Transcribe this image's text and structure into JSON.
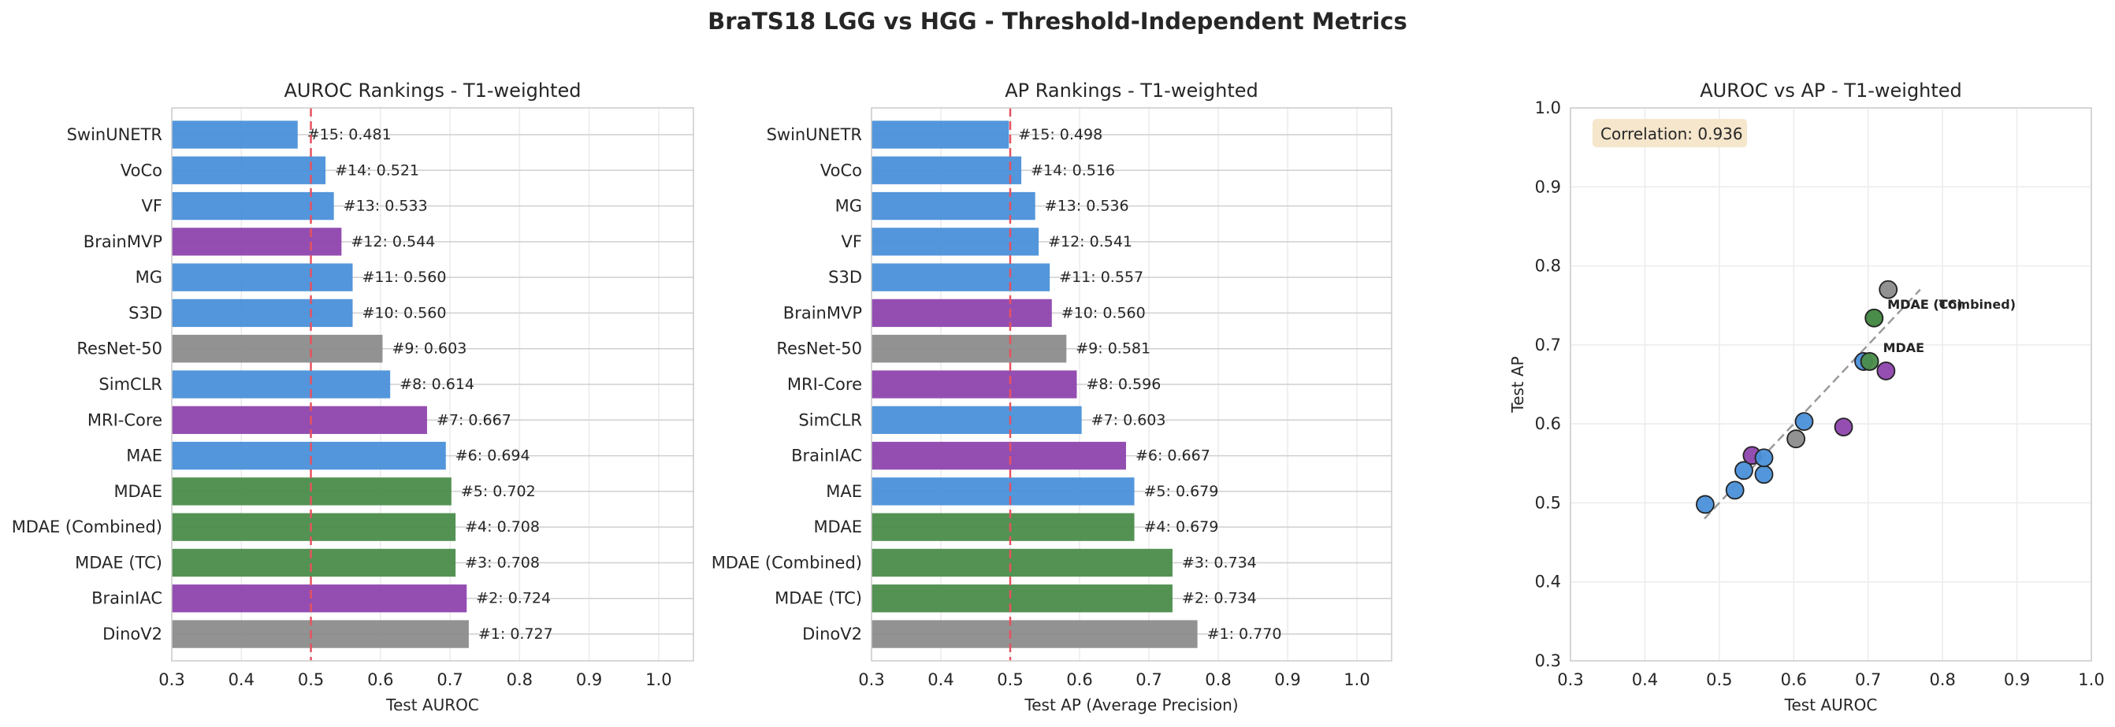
{
  "figure": {
    "suptitle": "BraTS18 LGG vs HGG - Threshold-Independent Metrics"
  },
  "colors": {
    "ssl_blue": "#4a90d9",
    "medical_purple": "#8e44ad",
    "mdae_green": "#4a8c4a",
    "baseline_gray": "#8c8c8c",
    "threshold_red": "#e8525f",
    "correlation_box": "#f5e6cc"
  },
  "chart_data": [
    {
      "type": "bar",
      "orientation": "horizontal",
      "title": "AUROC Rankings - T1-weighted",
      "xlabel": "Test AUROC",
      "xlim": [
        0.3,
        1.05
      ],
      "xticks": [
        0.3,
        0.4,
        0.5,
        0.6,
        0.7,
        0.8,
        0.9,
        1.0
      ],
      "xtick_labels": [
        "0.3",
        "0.4",
        "0.5",
        "0.6",
        "0.7",
        "0.8",
        "0.9",
        "1.0"
      ],
      "reference_line": 0.5,
      "grid": true,
      "categories": [
        "SwinUNETR",
        "VoCo",
        "VF",
        "BrainMVP",
        "MG",
        "S3D",
        "ResNet-50",
        "SimCLR",
        "MRI-Core",
        "MAE",
        "MDAE",
        "MDAE (Combined)",
        "MDAE (TC)",
        "BrainIAC",
        "DinoV2"
      ],
      "values": [
        0.481,
        0.521,
        0.533,
        0.544,
        0.56,
        0.56,
        0.603,
        0.614,
        0.667,
        0.694,
        0.702,
        0.708,
        0.708,
        0.724,
        0.727
      ],
      "labels": [
        "#15: 0.481",
        "#14: 0.521",
        "#13: 0.533",
        "#12: 0.544",
        "#11: 0.560",
        "#10: 0.560",
        "#9: 0.603",
        "#8: 0.614",
        "#7: 0.667",
        "#6: 0.694",
        "#5: 0.702",
        "#4: 0.708",
        "#3: 0.708",
        "#2: 0.724",
        "#1: 0.727"
      ],
      "bar_colors": [
        "ssl_blue",
        "ssl_blue",
        "ssl_blue",
        "medical_purple",
        "ssl_blue",
        "ssl_blue",
        "baseline_gray",
        "ssl_blue",
        "medical_purple",
        "ssl_blue",
        "mdae_green",
        "mdae_green",
        "mdae_green",
        "medical_purple",
        "baseline_gray"
      ]
    },
    {
      "type": "bar",
      "orientation": "horizontal",
      "title": "AP Rankings - T1-weighted",
      "xlabel": "Test AP (Average Precision)",
      "xlim": [
        0.3,
        1.05
      ],
      "xticks": [
        0.3,
        0.4,
        0.5,
        0.6,
        0.7,
        0.8,
        0.9,
        1.0
      ],
      "xtick_labels": [
        "0.3",
        "0.4",
        "0.5",
        "0.6",
        "0.7",
        "0.8",
        "0.9",
        "1.0"
      ],
      "reference_line": 0.5,
      "grid": true,
      "categories": [
        "SwinUNETR",
        "VoCo",
        "MG",
        "VF",
        "S3D",
        "BrainMVP",
        "ResNet-50",
        "MRI-Core",
        "SimCLR",
        "BrainIAC",
        "MAE",
        "MDAE",
        "MDAE (Combined)",
        "MDAE (TC)",
        "DinoV2"
      ],
      "values": [
        0.498,
        0.516,
        0.536,
        0.541,
        0.557,
        0.56,
        0.581,
        0.596,
        0.603,
        0.667,
        0.679,
        0.679,
        0.734,
        0.734,
        0.77
      ],
      "labels": [
        "#15: 0.498",
        "#14: 0.516",
        "#13: 0.536",
        "#12: 0.541",
        "#11: 0.557",
        "#10: 0.560",
        "#9: 0.581",
        "#8: 0.596",
        "#7: 0.603",
        "#6: 0.667",
        "#5: 0.679",
        "#4: 0.679",
        "#3: 0.734",
        "#2: 0.734",
        "#1: 0.770"
      ],
      "bar_colors": [
        "ssl_blue",
        "ssl_blue",
        "ssl_blue",
        "ssl_blue",
        "ssl_blue",
        "medical_purple",
        "baseline_gray",
        "medical_purple",
        "ssl_blue",
        "medical_purple",
        "ssl_blue",
        "mdae_green",
        "mdae_green",
        "mdae_green",
        "baseline_gray"
      ]
    },
    {
      "type": "scatter",
      "title": "AUROC vs AP - T1-weighted",
      "xlabel": "Test AUROC",
      "ylabel": "Test AP",
      "xlim": [
        0.3,
        1.0
      ],
      "ylim": [
        0.3,
        1.0
      ],
      "xticks": [
        0.3,
        0.4,
        0.5,
        0.6,
        0.7,
        0.8,
        0.9,
        1.0
      ],
      "xtick_labels": [
        "0.3",
        "0.4",
        "0.5",
        "0.6",
        "0.7",
        "0.8",
        "0.9",
        "1.0"
      ],
      "yticks": [
        0.3,
        0.4,
        0.5,
        0.6,
        0.7,
        0.8,
        0.9,
        1.0
      ],
      "ytick_labels": [
        "0.3",
        "0.4",
        "0.5",
        "0.6",
        "0.7",
        "0.8",
        "0.9",
        "1.0"
      ],
      "grid": true,
      "annotation": "Correlation: 0.936",
      "diagonal": [
        0.48,
        0.77
      ],
      "points": [
        {
          "x": 0.481,
          "y": 0.498,
          "color": "ssl_blue",
          "label": ""
        },
        {
          "x": 0.521,
          "y": 0.516,
          "color": "ssl_blue",
          "label": ""
        },
        {
          "x": 0.533,
          "y": 0.541,
          "color": "ssl_blue",
          "label": ""
        },
        {
          "x": 0.544,
          "y": 0.56,
          "color": "medical_purple",
          "label": ""
        },
        {
          "x": 0.56,
          "y": 0.536,
          "color": "ssl_blue",
          "label": ""
        },
        {
          "x": 0.56,
          "y": 0.557,
          "color": "ssl_blue",
          "label": ""
        },
        {
          "x": 0.603,
          "y": 0.581,
          "color": "baseline_gray",
          "label": ""
        },
        {
          "x": 0.614,
          "y": 0.603,
          "color": "ssl_blue",
          "label": ""
        },
        {
          "x": 0.667,
          "y": 0.596,
          "color": "medical_purple",
          "label": ""
        },
        {
          "x": 0.694,
          "y": 0.679,
          "color": "ssl_blue",
          "label": ""
        },
        {
          "x": 0.702,
          "y": 0.679,
          "color": "mdae_green",
          "label": "MDAE"
        },
        {
          "x": 0.708,
          "y": 0.734,
          "color": "mdae_green",
          "label": "MDAE (Combined)"
        },
        {
          "x": 0.708,
          "y": 0.734,
          "color": "mdae_green",
          "label": "MDAE (TC)"
        },
        {
          "x": 0.724,
          "y": 0.667,
          "color": "medical_purple",
          "label": ""
        },
        {
          "x": 0.727,
          "y": 0.77,
          "color": "baseline_gray",
          "label": ""
        }
      ]
    }
  ]
}
